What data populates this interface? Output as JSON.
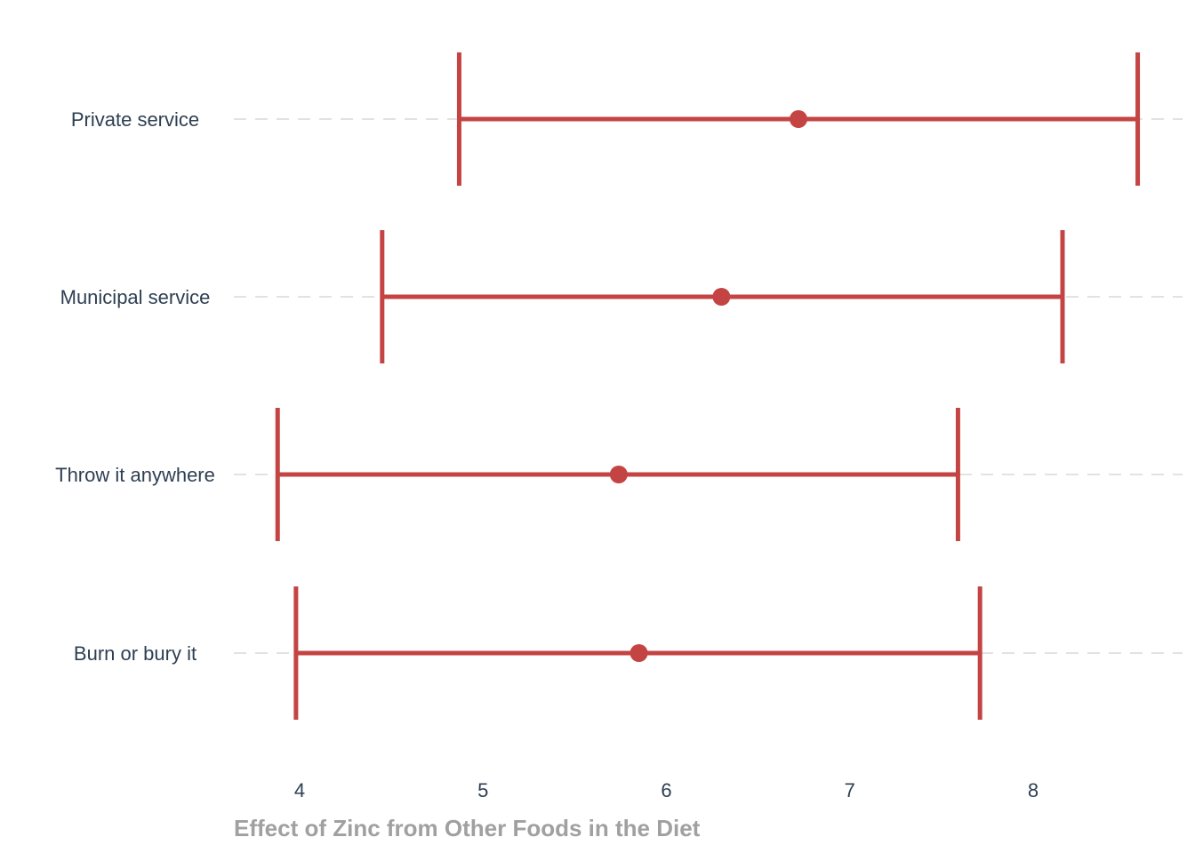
{
  "chart_data": {
    "type": "errorbar",
    "title": "",
    "xlabel": "Effect of Zinc from Other Foods in the Diet",
    "ylabel": "",
    "xlim": [
      3.63,
      8.85
    ],
    "xticks": [
      4,
      5,
      6,
      7,
      8
    ],
    "grid": {
      "horizontal": true,
      "vertical": false
    },
    "categories": [
      "Private service",
      "Municipal service",
      "Throw it anywhere",
      "Burn or bury it"
    ],
    "series": [
      {
        "estimate": [
          6.72,
          6.3,
          5.74,
          5.85
        ],
        "lower": [
          4.87,
          4.45,
          3.88,
          3.98
        ],
        "upper": [
          8.57,
          8.16,
          7.59,
          7.71
        ]
      }
    ],
    "colors": {
      "marks": "#c44443",
      "grid": "#e2e2e2",
      "axis_text": "#2e3f52",
      "axis_title": "#a0a0a0"
    }
  }
}
